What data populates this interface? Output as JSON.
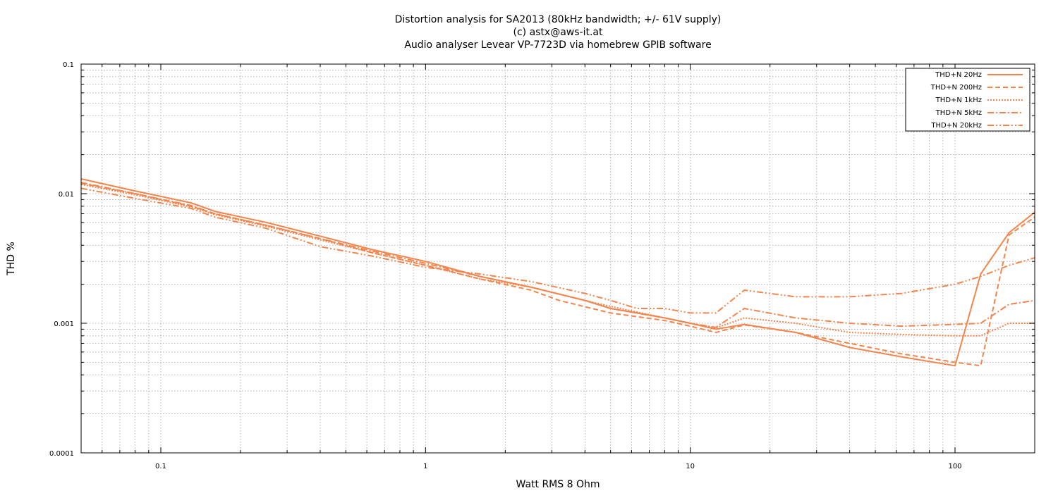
{
  "chart_data": {
    "type": "line",
    "title_lines": [
      "Distortion analysis for SA2013 (80kHz bandwidth; +/- 61V supply)",
      "(c) astx@aws-it.at",
      "Audio analyser Levear VP-7723D via homebrew GPIB software"
    ],
    "xlabel": "Watt RMS 8 Ohm",
    "ylabel": "THD %",
    "x_scale": "log",
    "y_scale": "log",
    "xlim": [
      0.05,
      200
    ],
    "ylim": [
      0.0001,
      0.1
    ],
    "x_ticks": [
      {
        "value": 0.1,
        "label": "0.1"
      },
      {
        "value": 1,
        "label": "1"
      },
      {
        "value": 10,
        "label": "10"
      },
      {
        "value": 100,
        "label": "100"
      }
    ],
    "y_ticks": [
      {
        "value": 0.1,
        "label": "0.1"
      },
      {
        "value": 0.01,
        "label": "0.01"
      },
      {
        "value": 0.001,
        "label": "0.001"
      },
      {
        "value": 0.0001,
        "label": "0.0001"
      }
    ],
    "grid": true,
    "legend_position": "top-right",
    "color": "#f4844c",
    "series": [
      {
        "name": "THD+N 20Hz",
        "dash": "solid",
        "points": [
          [
            0.05,
            0.013
          ],
          [
            0.08,
            0.0105
          ],
          [
            0.13,
            0.0085
          ],
          [
            0.16,
            0.0073
          ],
          [
            0.25,
            0.006
          ],
          [
            0.4,
            0.0047
          ],
          [
            0.63,
            0.0037
          ],
          [
            1,
            0.003
          ],
          [
            1.6,
            0.0023
          ],
          [
            2.5,
            0.0019
          ],
          [
            4,
            0.0015
          ],
          [
            5,
            0.0013
          ],
          [
            6.3,
            0.0012
          ],
          [
            8,
            0.0011
          ],
          [
            10,
            0.001
          ],
          [
            12.5,
            0.0009
          ],
          [
            16,
            0.00098
          ],
          [
            25,
            0.00085
          ],
          [
            40,
            0.00065
          ],
          [
            63,
            0.00055
          ],
          [
            100,
            0.00047
          ],
          [
            125,
            0.0024
          ],
          [
            160,
            0.005
          ],
          [
            200,
            0.0072
          ]
        ]
      },
      {
        "name": "THD+N 200Hz",
        "dash": "dashed",
        "points": [
          [
            0.05,
            0.012
          ],
          [
            0.08,
            0.01
          ],
          [
            0.13,
            0.008
          ],
          [
            0.16,
            0.007
          ],
          [
            0.25,
            0.0057
          ],
          [
            0.4,
            0.0045
          ],
          [
            0.63,
            0.0035
          ],
          [
            1,
            0.0028
          ],
          [
            1.6,
            0.0022
          ],
          [
            2.5,
            0.0018
          ],
          [
            3.2,
            0.0015
          ],
          [
            5,
            0.0012
          ],
          [
            8,
            0.00105
          ],
          [
            10,
            0.00095
          ],
          [
            12.5,
            0.00085
          ],
          [
            16,
            0.00097
          ],
          [
            25,
            0.00085
          ],
          [
            40,
            0.0007
          ],
          [
            63,
            0.00058
          ],
          [
            100,
            0.0005
          ],
          [
            125,
            0.00047
          ],
          [
            160,
            0.0048
          ],
          [
            200,
            0.0066
          ]
        ]
      },
      {
        "name": "THD+N 1kHz",
        "dash": "dotted",
        "points": [
          [
            0.05,
            0.0118
          ],
          [
            0.08,
            0.0098
          ],
          [
            0.13,
            0.0079
          ],
          [
            0.16,
            0.0069
          ],
          [
            0.25,
            0.0056
          ],
          [
            0.4,
            0.0044
          ],
          [
            0.63,
            0.0035
          ],
          [
            1,
            0.0028
          ],
          [
            1.6,
            0.0022
          ],
          [
            2.5,
            0.0019
          ],
          [
            4,
            0.0015
          ],
          [
            5,
            0.00135
          ],
          [
            8,
            0.0011
          ],
          [
            10,
            0.001
          ],
          [
            12.5,
            0.00092
          ],
          [
            16,
            0.0011
          ],
          [
            25,
            0.001
          ],
          [
            40,
            0.00085
          ],
          [
            63,
            0.00082
          ],
          [
            100,
            0.0008
          ],
          [
            125,
            0.0008
          ],
          [
            160,
            0.001
          ],
          [
            200,
            0.001
          ]
        ]
      },
      {
        "name": "THD+N 5kHz",
        "dash": "dashdot",
        "points": [
          [
            0.05,
            0.0122
          ],
          [
            0.08,
            0.01
          ],
          [
            0.13,
            0.0081
          ],
          [
            0.16,
            0.007
          ],
          [
            0.25,
            0.0057
          ],
          [
            0.4,
            0.0045
          ],
          [
            0.63,
            0.0036
          ],
          [
            1,
            0.0029
          ],
          [
            1.6,
            0.0023
          ],
          [
            2.5,
            0.0019
          ],
          [
            4,
            0.0015
          ],
          [
            5,
            0.0013
          ],
          [
            8,
            0.0011
          ],
          [
            10,
            0.001
          ],
          [
            12.5,
            0.00093
          ],
          [
            16,
            0.0013
          ],
          [
            25,
            0.0011
          ],
          [
            40,
            0.001
          ],
          [
            63,
            0.00095
          ],
          [
            100,
            0.00098
          ],
          [
            125,
            0.001
          ],
          [
            160,
            0.0014
          ],
          [
            200,
            0.0015
          ]
        ]
      },
      {
        "name": "THD+N 20kHz",
        "dash": "dashdotdot",
        "points": [
          [
            0.05,
            0.011
          ],
          [
            0.08,
            0.0092
          ],
          [
            0.13,
            0.0077
          ],
          [
            0.16,
            0.0066
          ],
          [
            0.25,
            0.0054
          ],
          [
            0.4,
            0.0039
          ],
          [
            0.63,
            0.0033
          ],
          [
            1,
            0.0027
          ],
          [
            1.6,
            0.0024
          ],
          [
            2.5,
            0.0021
          ],
          [
            4,
            0.0017
          ],
          [
            5,
            0.0015
          ],
          [
            6.3,
            0.0013
          ],
          [
            8,
            0.0013
          ],
          [
            10,
            0.0012
          ],
          [
            12.5,
            0.0012
          ],
          [
            16,
            0.0018
          ],
          [
            25,
            0.0016
          ],
          [
            40,
            0.0016
          ],
          [
            63,
            0.0017
          ],
          [
            100,
            0.002
          ],
          [
            125,
            0.0023
          ],
          [
            160,
            0.0028
          ],
          [
            200,
            0.0032
          ]
        ]
      }
    ]
  }
}
